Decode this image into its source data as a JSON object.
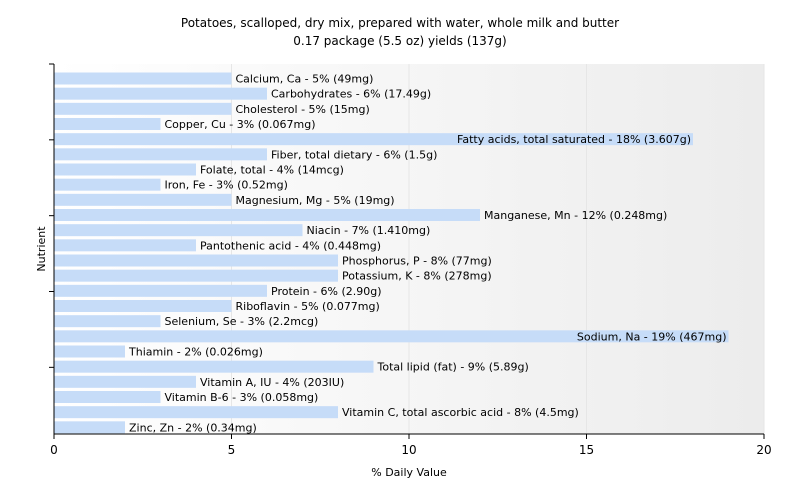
{
  "chart_data": {
    "type": "bar",
    "orientation": "horizontal",
    "title": "Potatoes, scalloped, dry mix, prepared with water, whole milk and butter",
    "subtitle": "0.17 package (5.5 oz) yields (137g)",
    "xlabel": "% Daily Value",
    "ylabel": "Nutrient",
    "xlim": [
      0,
      20
    ],
    "xticks": [
      0,
      5,
      10,
      15,
      20
    ],
    "grid": true,
    "bar_color": "#c6dcf8",
    "categories": [
      "Calcium, Ca",
      "Carbohydrates",
      "Cholesterol",
      "Copper, Cu",
      "Fatty acids, total saturated",
      "Fiber, total dietary",
      "Folate, total",
      "Iron, Fe",
      "Magnesium, Mg",
      "Manganese, Mn",
      "Niacin",
      "Pantothenic acid",
      "Phosphorus, P",
      "Potassium, K",
      "Protein",
      "Riboflavin",
      "Selenium, Se",
      "Sodium, Na",
      "Thiamin",
      "Total lipid (fat)",
      "Vitamin A, IU",
      "Vitamin B-6",
      "Vitamin C, total ascorbic acid",
      "Zinc, Zn"
    ],
    "values": [
      5,
      6,
      5,
      3,
      18,
      6,
      4,
      3,
      5,
      12,
      7,
      4,
      8,
      8,
      6,
      5,
      3,
      19,
      2,
      9,
      4,
      3,
      8,
      2
    ],
    "labels": [
      "Calcium, Ca - 5% (49mg)",
      "Carbohydrates - 6% (17.49g)",
      "Cholesterol - 5% (15mg)",
      "Copper, Cu - 3% (0.067mg)",
      "Fatty acids, total saturated - 18% (3.607g)",
      "Fiber, total dietary - 6% (1.5g)",
      "Folate, total - 4% (14mcg)",
      "Iron, Fe - 3% (0.52mg)",
      "Magnesium, Mg - 5% (19mg)",
      "Manganese, Mn - 12% (0.248mg)",
      "Niacin - 7% (1.410mg)",
      "Pantothenic acid - 4% (0.448mg)",
      "Phosphorus, P - 8% (77mg)",
      "Potassium, K - 8% (278mg)",
      "Protein - 6% (2.90g)",
      "Riboflavin - 5% (0.077mg)",
      "Selenium, Se - 3% (2.2mcg)",
      "Sodium, Na - 19% (467mg)",
      "Thiamin - 2% (0.026mg)",
      "Total lipid (fat) - 9% (5.89g)",
      "Vitamin A, IU - 4% (203IU)",
      "Vitamin B-6 - 3% (0.058mg)",
      "Vitamin C, total ascorbic acid - 8% (4.5mg)",
      "Zinc, Zn - 2% (0.34mg)"
    ],
    "label_position": {
      "Fatty acids, total saturated": "inside-end",
      "Sodium, Na": "inside-end"
    }
  }
}
